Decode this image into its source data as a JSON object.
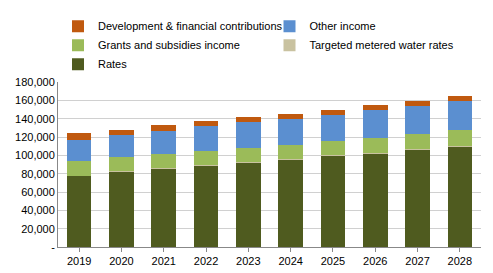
{
  "chart_data": {
    "type": "bar",
    "stacked": true,
    "grid": true,
    "legend": "top",
    "categories": [
      "2019",
      "2020",
      "2021",
      "2022",
      "2023",
      "2024",
      "2025",
      "2026",
      "2027",
      "2028"
    ],
    "series": [
      {
        "name": "Rates",
        "color": "#4f5b1f",
        "values": [
          77000,
          82000,
          85500,
          88500,
          91500,
          95000,
          99000,
          102000,
          106000,
          109500
        ]
      },
      {
        "name": "Targeted metered water rates",
        "color": "#c9c2a0",
        "values": [
          1000,
          1000,
          1000,
          1000,
          1000,
          1000,
          1000,
          1000,
          1000,
          1000
        ]
      },
      {
        "name": "Grants and subsidies income",
        "color": "#9bbb59",
        "values": [
          16000,
          15000,
          14500,
          15500,
          15000,
          15500,
          16000,
          16000,
          16500,
          17500
        ]
      },
      {
        "name": "Other income",
        "color": "#5b8fd0",
        "values": [
          23000,
          24000,
          26000,
          26500,
          28500,
          28000,
          27500,
          30000,
          30500,
          31000
        ]
      },
      {
        "name": "Development & financial contributions",
        "color": "#c0590f",
        "values": [
          7000,
          6000,
          6000,
          5500,
          5500,
          6000,
          6000,
          5500,
          5500,
          6000
        ]
      }
    ],
    "ylim": [
      0,
      180000
    ],
    "yticks": [
      {
        "value": 0,
        "label": "-"
      },
      {
        "value": 20000,
        "label": "20,000"
      },
      {
        "value": 40000,
        "label": "40,000"
      },
      {
        "value": 60000,
        "label": "60,000"
      },
      {
        "value": 80000,
        "label": "80,000"
      },
      {
        "value": 100000,
        "label": "100,000"
      },
      {
        "value": 120000,
        "label": "120,000"
      },
      {
        "value": 140000,
        "label": "140,000"
      },
      {
        "value": 160000,
        "label": "160,000"
      },
      {
        "value": 180000,
        "label": "180,000"
      }
    ]
  }
}
